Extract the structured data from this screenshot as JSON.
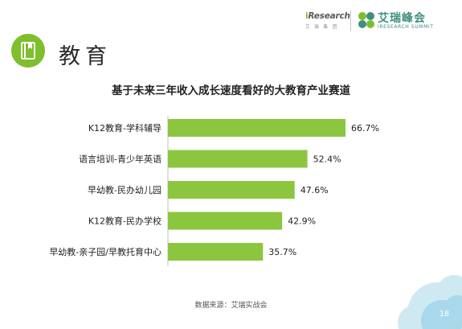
{
  "header": {
    "brand_prefix": "i",
    "brand_name": "Research",
    "brand_sub": "艾 瑞 集 团",
    "summit_cn": "艾瑞峰会",
    "summit_en": "IRESEARCH SUMMIT",
    "logo_icon": "iresearch-summit-mark-icon"
  },
  "section": {
    "icon": "book-icon",
    "title": "教育",
    "accent_color": "#7dbf2c"
  },
  "footer": {
    "source": "数据来源：艾瑞实战会",
    "page": "18"
  },
  "chart_data": {
    "type": "bar",
    "orientation": "horizontal",
    "title": "基于未来三年收入成长速度看好的大教育产业赛道",
    "categories": [
      "K12教育-学科辅导",
      "语言培训-青少年英语",
      "早幼教-民办幼儿园",
      "K12教育-民办学校",
      "早幼教-亲子园/早教托育中心"
    ],
    "values": [
      66.7,
      52.4,
      47.6,
      42.9,
      35.7
    ],
    "value_labels": [
      "66.7%",
      "52.4%",
      "47.6%",
      "42.9%",
      "35.7%"
    ],
    "unit": "%",
    "xlim": [
      0,
      66.7
    ],
    "grid": false,
    "legend": "none",
    "bar_color": "#8cc63f"
  }
}
